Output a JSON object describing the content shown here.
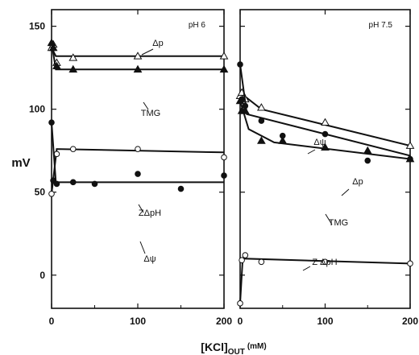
{
  "ylabel": "mV",
  "xlabel_main": "[KCl]",
  "xlabel_sub": "OUT",
  "xlabel_unit": "(mM)",
  "chart_data": [
    {
      "type": "line",
      "panel_label": "pH 6",
      "xlim": [
        0,
        200
      ],
      "ylim": [
        -20,
        160
      ],
      "xticks": [
        "0",
        "100",
        "200"
      ],
      "yticks": [
        "0",
        "50",
        "100",
        "150"
      ],
      "grid": false,
      "series": [
        {
          "name": "Δp",
          "marker": "open-triangle",
          "points": [
            [
              0,
              137
            ],
            [
              2,
              139
            ],
            [
              6,
              128
            ],
            [
              25,
              131
            ],
            [
              100,
              132
            ],
            [
              200,
              132
            ]
          ],
          "curve": [
            [
              0,
              137
            ],
            [
              5,
              132
            ],
            [
              200,
              132
            ]
          ]
        },
        {
          "name": "TMG",
          "marker": "filled-triangle",
          "points": [
            [
              0,
              140
            ],
            [
              2,
              137
            ],
            [
              6,
              126
            ],
            [
              25,
              124
            ],
            [
              100,
              124
            ],
            [
              200,
              124
            ]
          ],
          "curve": [
            [
              0,
              140
            ],
            [
              5,
              124
            ],
            [
              200,
              124
            ]
          ]
        },
        {
          "name": "ZΔpH",
          "marker": "open-circle",
          "points": [
            [
              0,
              49
            ],
            [
              2,
              57
            ],
            [
              6,
              73
            ],
            [
              25,
              76
            ],
            [
              100,
              76
            ],
            [
              200,
              71
            ]
          ],
          "curve": [
            [
              0,
              49
            ],
            [
              6,
              76
            ],
            [
              200,
              74
            ]
          ]
        },
        {
          "name": "Δψ",
          "marker": "filled-circle",
          "points": [
            [
              0,
              92
            ],
            [
              2,
              57
            ],
            [
              6,
              55
            ],
            [
              25,
              56
            ],
            [
              50,
              55
            ],
            [
              100,
              61
            ],
            [
              150,
              52
            ],
            [
              200,
              60
            ]
          ],
          "curve": [
            [
              0,
              92
            ],
            [
              5,
              56
            ],
            [
              200,
              56
            ]
          ]
        }
      ]
    },
    {
      "type": "line",
      "panel_label": "pH 7.5",
      "xlim": [
        0,
        200
      ],
      "ylim": [
        -20,
        160
      ],
      "xticks": [
        "0",
        "100",
        "200"
      ],
      "yticks": [],
      "grid": false,
      "series": [
        {
          "name": "Δp",
          "marker": "open-triangle",
          "points": [
            [
              0,
              108
            ],
            [
              2,
              110
            ],
            [
              6,
              106
            ],
            [
              25,
              101
            ],
            [
              100,
              92
            ],
            [
              200,
              78
            ]
          ],
          "curve": [
            [
              0,
              110
            ],
            [
              25,
              100
            ],
            [
              200,
              78
            ]
          ]
        },
        {
          "name": "Δψ",
          "marker": "filled-circle",
          "points": [
            [
              0,
              127
            ],
            [
              2,
              106
            ],
            [
              6,
              102
            ],
            [
              25,
              93
            ],
            [
              50,
              84
            ],
            [
              100,
              85
            ],
            [
              150,
              69
            ],
            [
              200,
              70
            ]
          ],
          "curve": [
            [
              0,
              127
            ],
            [
              8,
              97
            ],
            [
              200,
              72
            ]
          ]
        },
        {
          "name": "TMG",
          "marker": "filled-triangle",
          "points": [
            [
              0,
              105
            ],
            [
              2,
              99
            ],
            [
              6,
              99
            ],
            [
              25,
              81
            ],
            [
              50,
              81
            ],
            [
              100,
              77
            ],
            [
              150,
              75
            ],
            [
              200,
              70
            ]
          ],
          "curve": [
            [
              0,
              105
            ],
            [
              10,
              88
            ],
            [
              40,
              80
            ],
            [
              200,
              70
            ]
          ]
        },
        {
          "name": "Z ΔpH",
          "marker": "open-circle",
          "points": [
            [
              0,
              -17
            ],
            [
              2,
              9
            ],
            [
              6,
              12
            ],
            [
              25,
              8
            ],
            [
              100,
              8
            ],
            [
              200,
              7
            ]
          ],
          "curve": [
            [
              0,
              -17
            ],
            [
              3,
              10
            ],
            [
              200,
              7
            ]
          ]
        }
      ]
    }
  ]
}
